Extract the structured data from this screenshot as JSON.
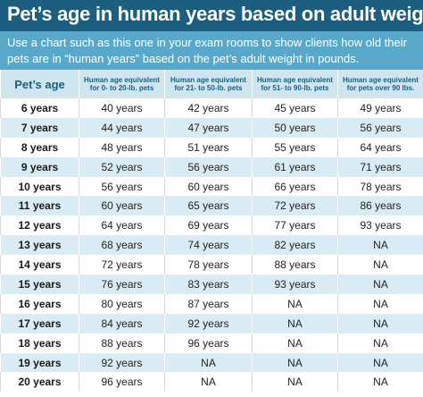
{
  "title": "Pet’s age in human years based on adult weight",
  "subtitle": "Use a chart such as this one in your exam rooms to show clients how old their pets are in “human years” based on the pet’s adult weight in pounds.",
  "colors": {
    "title_band": "#1b5e7f",
    "subtitle_band": "#5aa8c9",
    "header_bg": "#cfe6f1",
    "alt_row": "#d9ecf5"
  },
  "table": {
    "headers": [
      "Pet’s age",
      "Human age equivalent for 0- to 20-lb. pets",
      "Human age equivalent for 21- to 50-lb. pets",
      "Human age equivalent for 51- to 90-lb. pets",
      "Human age equivalent for pets over 90 lbs."
    ],
    "rows": [
      [
        "6 years",
        "40 years",
        "42 years",
        "45 years",
        "49 years"
      ],
      [
        "7 years",
        "44 years",
        "47 years",
        "50 years",
        "56 years"
      ],
      [
        "8 years",
        "48 years",
        "51 years",
        "55 years",
        "64 years"
      ],
      [
        "9 years",
        "52 years",
        "56 years",
        "61 years",
        "71 years"
      ],
      [
        "10 years",
        "56 years",
        "60 years",
        "66 years",
        "78 years"
      ],
      [
        "11 years",
        "60 years",
        "65 years",
        "72 years",
        "86 years"
      ],
      [
        "12 years",
        "64 years",
        "69 years",
        "77 years",
        "93 years"
      ],
      [
        "13 years",
        "68 years",
        "74 years",
        "82 years",
        "NA"
      ],
      [
        "14 years",
        "72 years",
        "78 years",
        "88 years",
        "NA"
      ],
      [
        "15 years",
        "76 years",
        "83 years",
        "93 years",
        "NA"
      ],
      [
        "16 years",
        "80 years",
        "87 years",
        "NA",
        "NA"
      ],
      [
        "17 years",
        "84 years",
        "92 years",
        "NA",
        "NA"
      ],
      [
        "18 years",
        "88 years",
        "96 years",
        "NA",
        "NA"
      ],
      [
        "19 years",
        "92 years",
        "NA",
        "NA",
        "NA"
      ],
      [
        "20 years",
        "96 years",
        "NA",
        "NA",
        "NA"
      ]
    ]
  }
}
